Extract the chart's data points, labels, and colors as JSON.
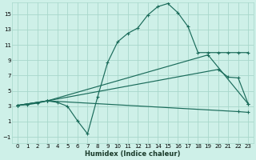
{
  "xlabel": "Humidex (Indice chaleur)",
  "bg_color": "#cef0e8",
  "grid_color": "#a8d8cc",
  "line_color": "#1a6b5a",
  "xlim": [
    -0.5,
    23.5
  ],
  "ylim": [
    -1.8,
    16.5
  ],
  "xticks": [
    0,
    1,
    2,
    3,
    4,
    5,
    6,
    7,
    8,
    9,
    10,
    11,
    12,
    13,
    14,
    15,
    16,
    17,
    18,
    19,
    20,
    21,
    22,
    23
  ],
  "yticks": [
    -1,
    1,
    3,
    5,
    7,
    9,
    11,
    13,
    15
  ],
  "line1_x": [
    0,
    1,
    2,
    3,
    4,
    5,
    6,
    7,
    8,
    9,
    10,
    11,
    12,
    13,
    14,
    15,
    16,
    17,
    18,
    19,
    20,
    21,
    22,
    23
  ],
  "line1_y": [
    3.1,
    3.2,
    3.4,
    3.7,
    3.5,
    3.0,
    1.1,
    -0.6,
    4.2,
    8.7,
    11.4,
    12.5,
    13.2,
    14.9,
    16.0,
    16.4,
    15.2,
    13.4,
    10.0,
    10.0,
    10.0,
    10.0,
    10.0,
    10.0
  ],
  "line2_x": [
    0,
    3,
    22,
    23
  ],
  "line2_y": [
    3.1,
    3.7,
    2.3,
    2.2
  ],
  "line3_x": [
    0,
    3,
    20,
    21,
    22,
    23
  ],
  "line3_y": [
    3.1,
    3.7,
    7.8,
    6.8,
    6.7,
    3.3
  ],
  "line4_x": [
    0,
    3,
    19,
    23
  ],
  "line4_y": [
    3.1,
    3.7,
    9.7,
    3.3
  ],
  "lw": 0.85,
  "ms": 2.2
}
